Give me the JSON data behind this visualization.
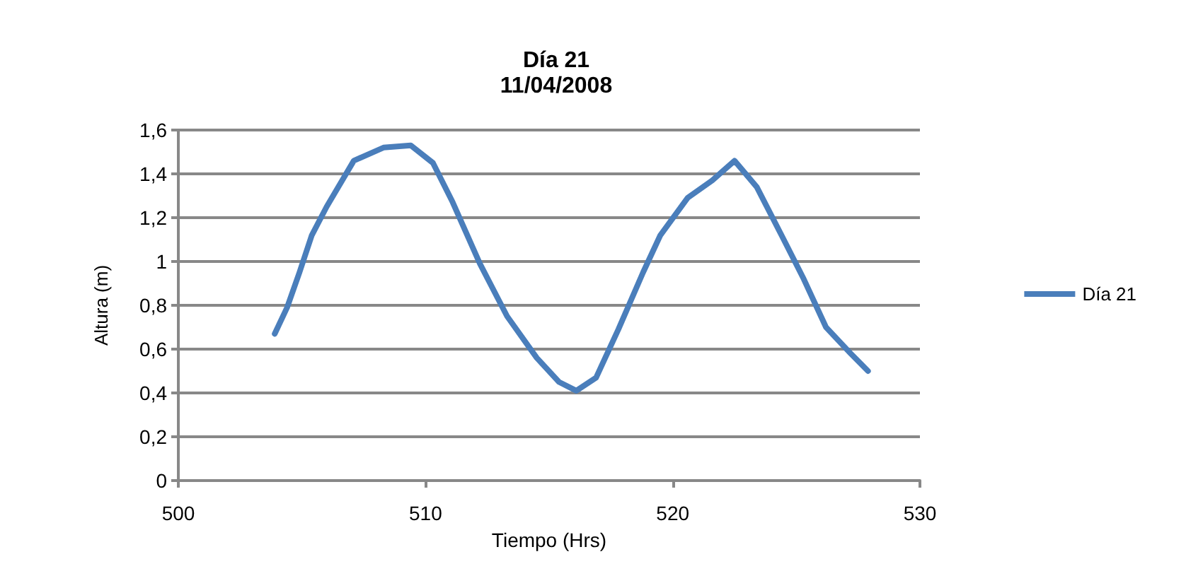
{
  "chart_data": {
    "type": "line",
    "title": "Día 21",
    "subtitle": "11/04/2008",
    "xlabel": "Tiempo (Hrs)",
    "ylabel": "Altura (m)",
    "xlim": [
      500,
      530
    ],
    "xticks": [
      500,
      510,
      520,
      530
    ],
    "ylim": [
      0,
      1.6
    ],
    "yticks": [
      0,
      {
        "value": 0.2,
        "label": "0,2"
      },
      {
        "value": 0.4,
        "label": "0,4"
      },
      {
        "value": 0.6,
        "label": "0,6"
      },
      {
        "value": 0.8,
        "label": "0,8"
      },
      1,
      {
        "value": 1.2,
        "label": "1,2"
      },
      {
        "value": 1.4,
        "label": "1,4"
      },
      {
        "value": 1.6,
        "label": "1,6"
      }
    ],
    "grid": "y",
    "legend": "right",
    "marker": "none",
    "line_style": "solid",
    "series": [
      {
        "name": "Día 21",
        "color": "#4a7ebb",
        "x": [
          503.9,
          504.4,
          504.9,
          505.4,
          506.0,
          507.1,
          508.3,
          509.4,
          510.3,
          511.1,
          512.2,
          513.3,
          514.5,
          515.4,
          516.1,
          516.9,
          517.8,
          518.8,
          519.5,
          520.6,
          521.6,
          522.5,
          523.4,
          524.4,
          525.3,
          526.2,
          527.2,
          527.9
        ],
        "values": [
          0.67,
          0.79,
          0.95,
          1.12,
          1.25,
          1.46,
          1.52,
          1.53,
          1.45,
          1.27,
          0.99,
          0.75,
          0.56,
          0.45,
          0.41,
          0.47,
          0.69,
          0.95,
          1.12,
          1.29,
          1.37,
          1.46,
          1.34,
          1.12,
          0.92,
          0.7,
          0.58,
          0.5
        ]
      }
    ]
  }
}
